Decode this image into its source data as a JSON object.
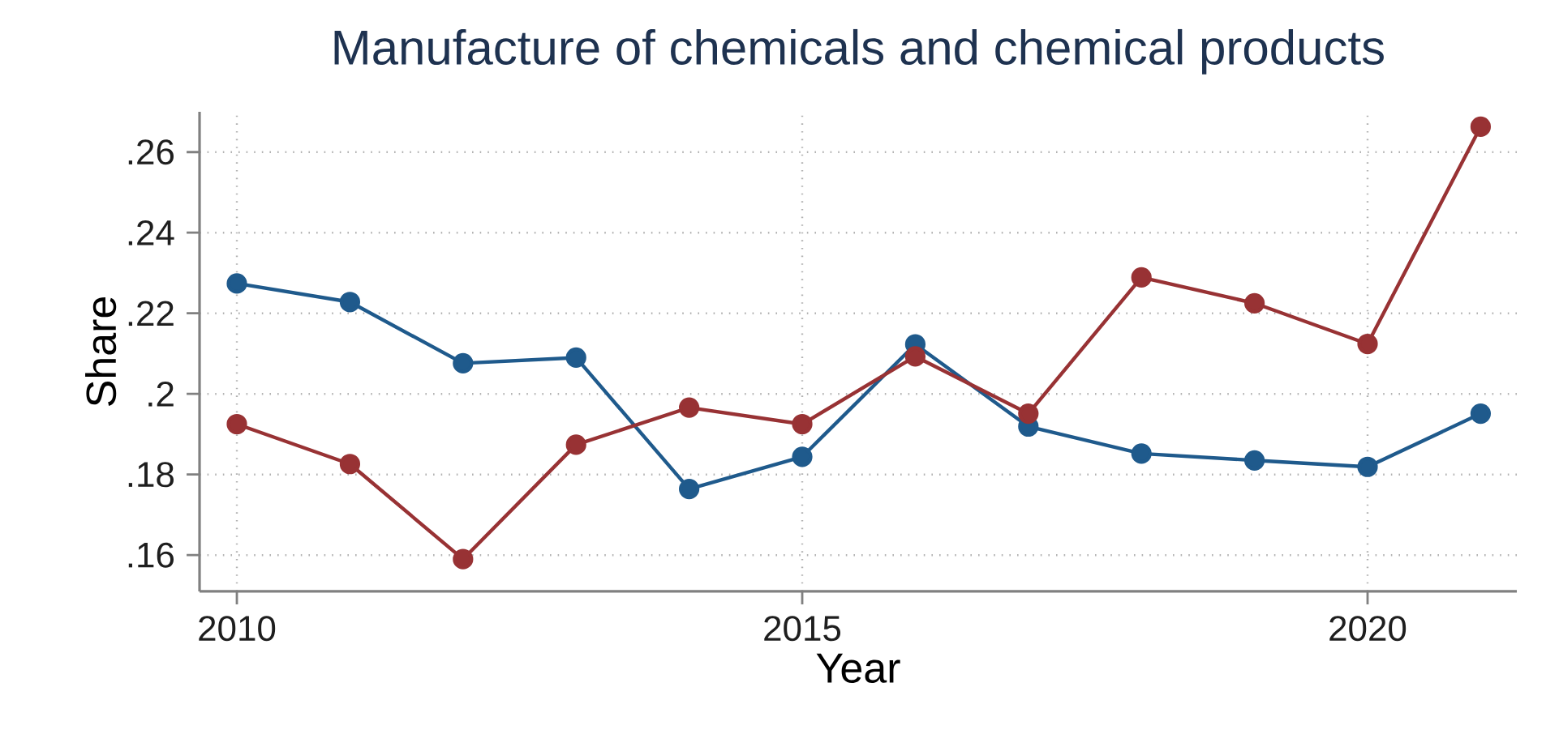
{
  "chart_data": {
    "type": "line",
    "title": "Manufacture of chemicals and chemical products",
    "xlabel": "Year",
    "ylabel": "Share",
    "x": [
      2010,
      2011,
      2012,
      2013,
      2014,
      2015,
      2016,
      2017,
      2018,
      2019,
      2020,
      2021
    ],
    "series": [
      {
        "color": "#1f5a8c",
        "values": [
          0.2274,
          0.2228,
          0.2076,
          0.209,
          0.1764,
          0.1844,
          0.2123,
          0.1919,
          0.1852,
          0.1835,
          0.1819,
          0.1951
        ]
      },
      {
        "color": "#983234",
        "values": [
          0.1925,
          0.1826,
          0.159,
          0.1874,
          0.1966,
          0.1925,
          0.2093,
          0.1951,
          0.2289,
          0.2225,
          0.2124,
          0.2663
        ]
      }
    ],
    "xlim": [
      2009.67,
      2021.32
    ],
    "ylim": [
      0.151,
      0.27
    ],
    "xticks": [
      2010,
      2015,
      2020
    ],
    "yticks": [
      {
        "value": 0.16,
        "label": ".16"
      },
      {
        "value": 0.18,
        "label": ".18"
      },
      {
        "value": 0.2,
        "label": ".2"
      },
      {
        "value": 0.22,
        "label": ".22"
      },
      {
        "value": 0.24,
        "label": ".24"
      },
      {
        "value": 0.26,
        "label": ".26"
      }
    ],
    "grid": true,
    "marker": "circle",
    "line_style": "solid"
  }
}
